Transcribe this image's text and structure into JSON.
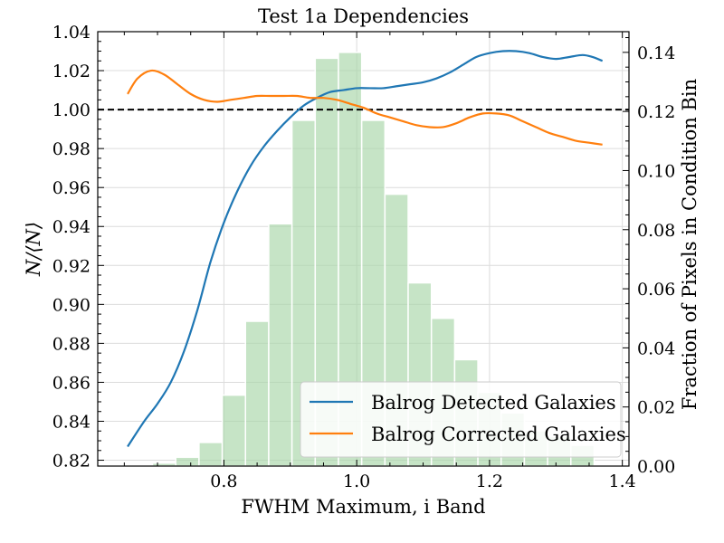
{
  "chart_data": {
    "type": "line",
    "title": "Test 1a Dependencies",
    "xlabel": "FWHM Maximum, i Band",
    "ylabel": "N/⟨N⟩",
    "ylabel_right": "Fraction of Pixels in Condition Bin",
    "xlim": [
      0.61,
      1.41
    ],
    "ylim": [
      0.817,
      1.04
    ],
    "ylim_right": [
      0.0,
      0.147
    ],
    "x_ticks": [
      0.8,
      1.0,
      1.2,
      1.4
    ],
    "x_tick_labels": [
      "0.8",
      "1.0",
      "1.2",
      "1.4"
    ],
    "y_ticks": [
      0.82,
      0.84,
      0.86,
      0.88,
      0.9,
      0.92,
      0.94,
      0.96,
      0.98,
      1.0,
      1.02,
      1.04
    ],
    "y_tick_labels": [
      "0.82",
      "0.84",
      "0.86",
      "0.88",
      "0.90",
      "0.92",
      "0.94",
      "0.96",
      "0.98",
      "1.00",
      "1.02",
      "1.04"
    ],
    "y_ticks_right": [
      0.0,
      0.02,
      0.04,
      0.06,
      0.08,
      0.1,
      0.12,
      0.14
    ],
    "y_tick_labels_right": [
      "0.00",
      "0.02",
      "0.04",
      "0.06",
      "0.08",
      "0.10",
      "0.12",
      "0.14"
    ],
    "grid": true,
    "reference_line": {
      "y": 1.0,
      "style": "dashed",
      "color": "#000000"
    },
    "legend_position": "bottom-right",
    "series": [
      {
        "name": "Balrog Detected Galaxies",
        "color": "#1f77b4",
        "x": [
          0.655,
          0.68,
          0.7,
          0.72,
          0.74,
          0.76,
          0.78,
          0.8,
          0.82,
          0.84,
          0.86,
          0.88,
          0.9,
          0.92,
          0.94,
          0.96,
          0.98,
          1.0,
          1.02,
          1.04,
          1.06,
          1.08,
          1.1,
          1.12,
          1.14,
          1.16,
          1.18,
          1.2,
          1.22,
          1.24,
          1.26,
          1.28,
          1.3,
          1.32,
          1.34,
          1.355,
          1.37
        ],
        "y": [
          0.827,
          0.84,
          0.849,
          0.86,
          0.876,
          0.897,
          0.922,
          0.942,
          0.958,
          0.971,
          0.981,
          0.989,
          0.996,
          1.002,
          1.006,
          1.009,
          1.01,
          1.011,
          1.011,
          1.011,
          1.012,
          1.013,
          1.014,
          1.016,
          1.019,
          1.023,
          1.027,
          1.029,
          1.03,
          1.03,
          1.029,
          1.027,
          1.026,
          1.027,
          1.028,
          1.027,
          1.025
        ]
      },
      {
        "name": "Balrog Corrected Galaxies",
        "color": "#ff7f0e",
        "x": [
          0.655,
          0.67,
          0.69,
          0.71,
          0.73,
          0.75,
          0.77,
          0.79,
          0.81,
          0.83,
          0.85,
          0.87,
          0.89,
          0.91,
          0.93,
          0.95,
          0.97,
          0.99,
          1.01,
          1.03,
          1.05,
          1.07,
          1.09,
          1.11,
          1.13,
          1.15,
          1.17,
          1.19,
          1.21,
          1.23,
          1.25,
          1.27,
          1.29,
          1.31,
          1.33,
          1.35,
          1.37
        ],
        "y": [
          1.008,
          1.016,
          1.02,
          1.018,
          1.013,
          1.008,
          1.005,
          1.004,
          1.005,
          1.006,
          1.007,
          1.007,
          1.007,
          1.007,
          1.006,
          1.006,
          1.005,
          1.003,
          1.001,
          0.998,
          0.996,
          0.994,
          0.992,
          0.991,
          0.991,
          0.993,
          0.996,
          0.998,
          0.998,
          0.997,
          0.994,
          0.991,
          0.988,
          0.986,
          0.984,
          0.983,
          0.982
        ]
      }
    ],
    "histogram": {
      "axis": "right",
      "color": "#a8d5a8",
      "bin_centers": [
        0.675,
        0.71,
        0.745,
        0.78,
        0.815,
        0.85,
        0.885,
        0.92,
        0.955,
        0.99,
        1.025,
        1.06,
        1.095,
        1.13,
        1.165,
        1.2,
        1.235,
        1.27,
        1.305,
        1.34
      ],
      "bin_width": 0.035,
      "values": [
        0.0,
        0.001,
        0.003,
        0.008,
        0.024,
        0.049,
        0.082,
        0.117,
        0.138,
        0.14,
        0.117,
        0.092,
        0.062,
        0.05,
        0.036,
        0.025,
        0.018,
        0.012,
        0.01,
        0.007
      ]
    }
  }
}
